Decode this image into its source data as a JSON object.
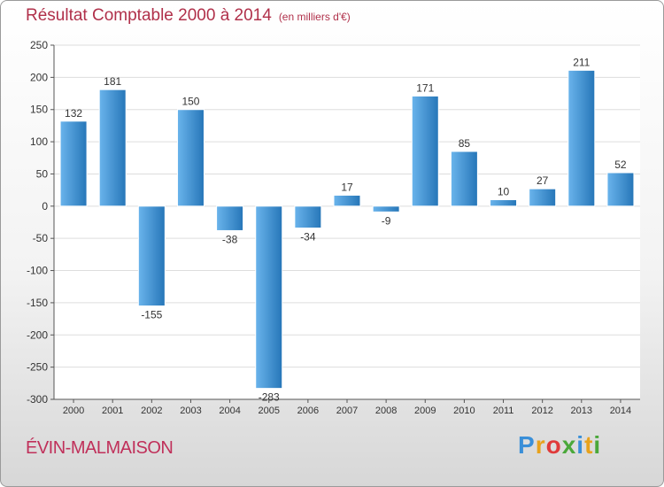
{
  "title": "Résultat Comptable 2000 à 2014",
  "unit": "(en milliers d'€)",
  "commune": "ÉVIN-MALMAISON",
  "logo": {
    "text": "Proxiti",
    "letters": [
      {
        "char": "P",
        "color": "#3a8fd8"
      },
      {
        "char": "r",
        "color": "#e8a21c"
      },
      {
        "char": "o",
        "color": "#e03a3a"
      },
      {
        "char": "x",
        "color": "#4aa83a"
      },
      {
        "char": "i",
        "color": "#3a8fd8"
      },
      {
        "char": "t",
        "color": "#e8a21c"
      },
      {
        "char": "i",
        "color": "#4aa83a"
      }
    ]
  },
  "colors": {
    "bar_light": "#6ab4ec",
    "bar_dark": "#2676b8",
    "grid": "#dddddd",
    "title": "#b0304a"
  },
  "chart_data": {
    "type": "bar",
    "categories": [
      "2000",
      "2001",
      "2002",
      "2003",
      "2004",
      "2005",
      "2006",
      "2007",
      "2008",
      "2009",
      "2010",
      "2011",
      "2012",
      "2013",
      "2014"
    ],
    "values": [
      132,
      181,
      -155,
      150,
      -38,
      -283,
      -34,
      17,
      -9,
      171,
      85,
      10,
      27,
      211,
      52
    ],
    "ylim": [
      -300,
      250
    ],
    "yticks": [
      250,
      200,
      150,
      100,
      50,
      0,
      -50,
      -100,
      -150,
      -200,
      -250,
      -300
    ],
    "grid": true
  }
}
